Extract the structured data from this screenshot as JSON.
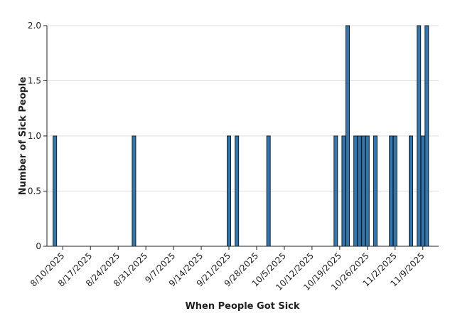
{
  "chart_data": {
    "type": "bar",
    "title": "",
    "xlabel": "When People Got Sick",
    "ylabel": "Number of Sick People",
    "ylim": [
      0,
      2.0
    ],
    "yticks": [
      "0",
      "0.5",
      "1.0",
      "1.5",
      "2.0"
    ],
    "ytick_values": [
      0,
      0.5,
      1.0,
      1.5,
      2.0
    ],
    "grid": true,
    "bar_color": "#2e77b3",
    "x_range": [
      "2025-08-06",
      "2025-11-13"
    ],
    "xticks": [
      {
        "date": "2025-08-10",
        "label": "8/10/2025"
      },
      {
        "date": "2025-08-17",
        "label": "8/17/2025"
      },
      {
        "date": "2025-08-24",
        "label": "8/24/2025"
      },
      {
        "date": "2025-08-31",
        "label": "8/31/2025"
      },
      {
        "date": "2025-09-07",
        "label": "9/7/2025"
      },
      {
        "date": "2025-09-14",
        "label": "9/14/2025"
      },
      {
        "date": "2025-09-21",
        "label": "9/21/2025"
      },
      {
        "date": "2025-09-28",
        "label": "9/28/2025"
      },
      {
        "date": "2025-10-05",
        "label": "10/5/2025"
      },
      {
        "date": "2025-10-12",
        "label": "10/12/2025"
      },
      {
        "date": "2025-10-19",
        "label": "10/19/2025"
      },
      {
        "date": "2025-10-26",
        "label": "10/26/2025"
      },
      {
        "date": "2025-11-02",
        "label": "11/2/2025"
      },
      {
        "date": "2025-11-09",
        "label": "11/9/2025"
      }
    ],
    "data": [
      {
        "date": "2025-08-08",
        "value": 1
      },
      {
        "date": "2025-08-28",
        "value": 1
      },
      {
        "date": "2025-09-21",
        "value": 1
      },
      {
        "date": "2025-09-23",
        "value": 1
      },
      {
        "date": "2025-10-01",
        "value": 1
      },
      {
        "date": "2025-10-18",
        "value": 1
      },
      {
        "date": "2025-10-20",
        "value": 1
      },
      {
        "date": "2025-10-21",
        "value": 2
      },
      {
        "date": "2025-10-23",
        "value": 1
      },
      {
        "date": "2025-10-24",
        "value": 1
      },
      {
        "date": "2025-10-25",
        "value": 1
      },
      {
        "date": "2025-10-26",
        "value": 1
      },
      {
        "date": "2025-10-28",
        "value": 1
      },
      {
        "date": "2025-11-01",
        "value": 1
      },
      {
        "date": "2025-11-02",
        "value": 1
      },
      {
        "date": "2025-11-06",
        "value": 1
      },
      {
        "date": "2025-11-08",
        "value": 2
      },
      {
        "date": "2025-11-09",
        "value": 1
      },
      {
        "date": "2025-11-10",
        "value": 2
      }
    ]
  }
}
